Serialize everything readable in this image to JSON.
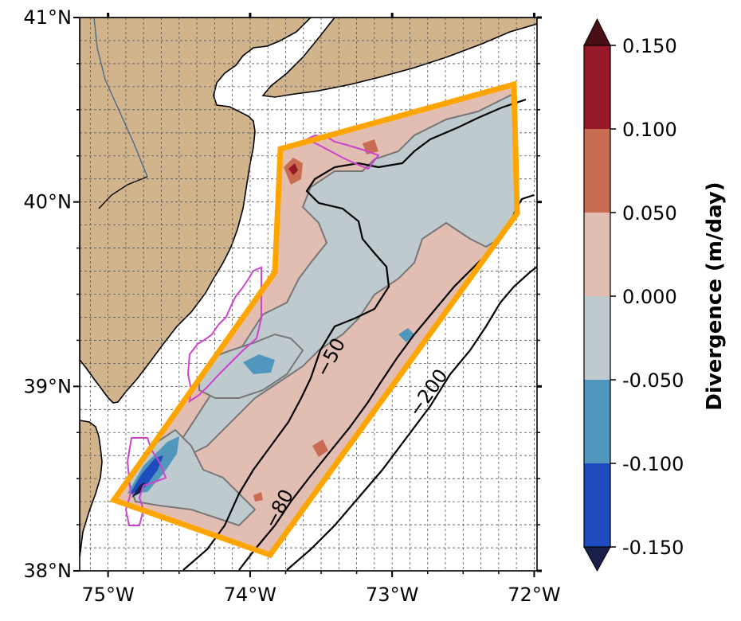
{
  "map": {
    "lon_range": [
      -75.2,
      -71.98
    ],
    "lat_range": [
      38.0,
      41.0
    ],
    "lon_ticks": [
      {
        "value": -75,
        "label": "75°W"
      },
      {
        "value": -74,
        "label": "74°W"
      },
      {
        "value": -73,
        "label": "73°W"
      },
      {
        "value": -72,
        "label": "72°W"
      }
    ],
    "lat_ticks": [
      {
        "value": 41,
        "label": "41°N"
      },
      {
        "value": 40,
        "label": "40°N"
      },
      {
        "value": 39,
        "label": "39°N"
      },
      {
        "value": 38,
        "label": "38°N"
      }
    ],
    "gridlines": "dashed",
    "colors": {
      "land": "#d2b48c",
      "ocean": "#ffffff",
      "domain_outline": "#ffa500",
      "lease_outline": "#cc44cc",
      "isobath": "#000000",
      "field_contour": "#777777"
    },
    "isobath_labels": [
      "−50",
      "−80",
      "−200"
    ]
  },
  "colorbar": {
    "title": "Divergence (m/day)",
    "tick_labels": [
      "0.150",
      "0.100",
      "0.050",
      "0.000",
      "-0.050",
      "-0.100",
      "-0.150"
    ],
    "levels": [
      -0.15,
      -0.1,
      -0.05,
      0.0,
      0.05,
      0.1,
      0.15
    ],
    "colors": [
      "#1e4bbe",
      "#5096bd",
      "#bfcacf",
      "#e2bdb2",
      "#c86d52",
      "#961927"
    ],
    "under_color": "#1a1f4a",
    "over_color": "#4a0f14",
    "extend": "both"
  }
}
